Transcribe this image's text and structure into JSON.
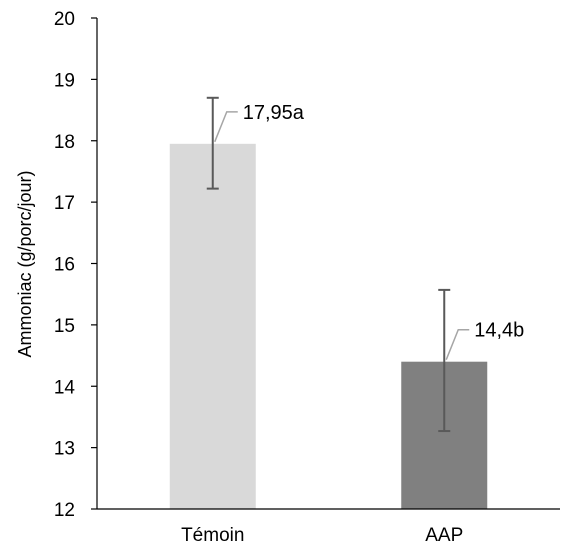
{
  "chart_data": {
    "type": "bar",
    "title": "",
    "xlabel": "",
    "ylabel": "Ammoniac (g/porc/jour)",
    "ylim": [
      12,
      20
    ],
    "yticks": [
      12,
      13,
      14,
      15,
      16,
      17,
      18,
      19,
      20
    ],
    "ytick_labels": [
      "12",
      "13",
      "14",
      "15",
      "16",
      "17",
      "18",
      "19",
      "20"
    ],
    "grid": false,
    "legend": "none",
    "categories": [
      "Témoin",
      "AAP"
    ],
    "values": [
      17.95,
      14.4
    ],
    "error_low": [
      17.22,
      13.27
    ],
    "error_high": [
      18.7,
      15.57
    ],
    "data_labels": [
      "17,95a",
      "14,4b"
    ],
    "colors": [
      "#d9d9d9",
      "#808080"
    ],
    "error_color": "#595959",
    "leader_color": "#a6a6a6"
  }
}
